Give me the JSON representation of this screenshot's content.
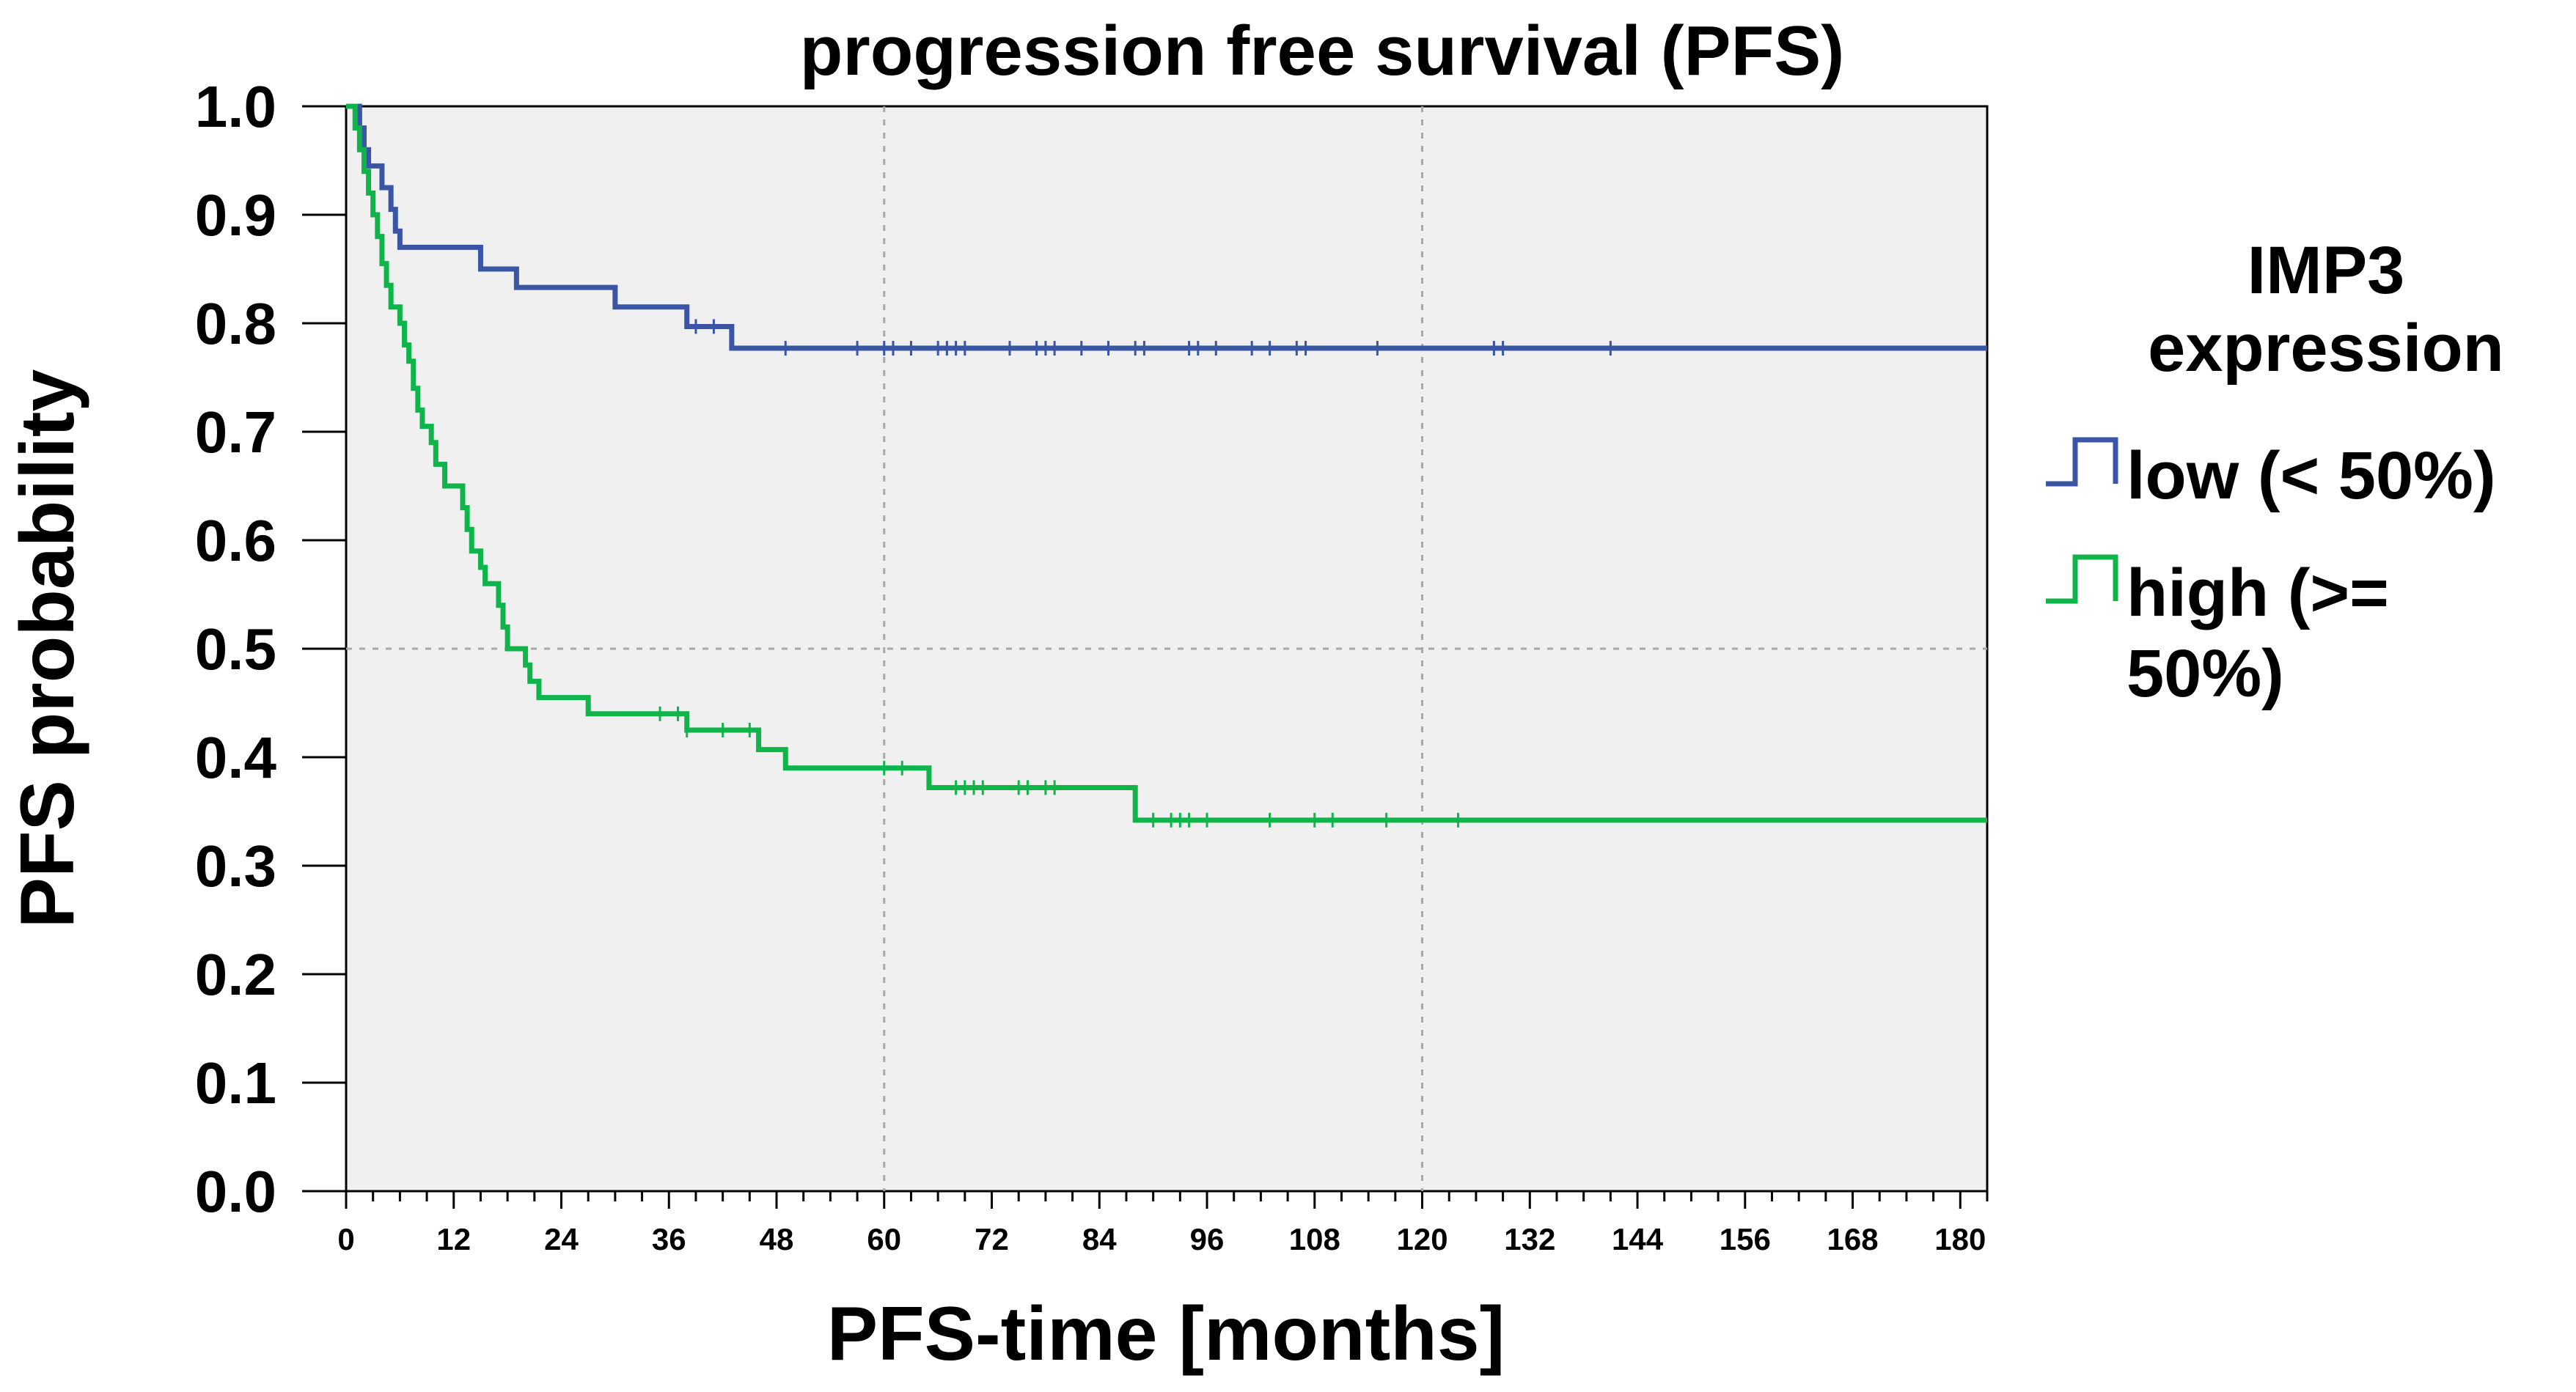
{
  "chart_data": {
    "type": "line",
    "title": "progression free survival (PFS)",
    "xlabel": "PFS-time [months]",
    "ylabel": "PFS probability",
    "xlim": [
      0,
      183
    ],
    "ylim": [
      0,
      1.0
    ],
    "x_ticks": [
      0,
      12,
      24,
      36,
      48,
      60,
      72,
      84,
      96,
      108,
      120,
      132,
      144,
      156,
      168,
      180
    ],
    "y_ticks": [
      "0.0",
      "0.1",
      "0.2",
      "0.3",
      "0.4",
      "0.5",
      "0.6",
      "0.7",
      "0.8",
      "0.9",
      "1.0"
    ],
    "grid": {
      "x_lines": [
        60,
        120
      ],
      "y_lines": [
        0.5
      ]
    },
    "background": "#f0f0f0",
    "legend": {
      "title": [
        "IMP3",
        "expression"
      ],
      "placement": "right"
    },
    "series": [
      {
        "name": "low (< 50%)",
        "legend_lines": [
          "low (< 50%)"
        ],
        "color": "#3a55a4",
        "steps": [
          [
            0,
            1.0
          ],
          [
            1.5,
            0.98
          ],
          [
            2,
            0.96
          ],
          [
            2.5,
            0.945
          ],
          [
            4,
            0.925
          ],
          [
            5,
            0.905
          ],
          [
            5.5,
            0.885
          ],
          [
            6,
            0.87
          ],
          [
            15,
            0.85
          ],
          [
            19,
            0.833
          ],
          [
            30,
            0.815
          ],
          [
            38,
            0.797
          ],
          [
            43,
            0.777
          ],
          [
            183,
            0.777
          ]
        ],
        "censored": [
          39,
          41,
          49,
          57,
          60,
          61,
          63,
          66,
          67,
          68,
          69,
          74,
          77,
          78,
          79,
          82,
          85,
          88,
          89,
          94,
          95,
          97,
          101,
          103,
          106,
          107,
          115,
          128,
          129,
          141
        ]
      },
      {
        "name": "high (>= 50%)",
        "legend_lines": [
          "high (>=",
          "50%)"
        ],
        "color": "#0fb54a",
        "steps": [
          [
            0,
            1.0
          ],
          [
            1,
            0.98
          ],
          [
            1.5,
            0.96
          ],
          [
            2,
            0.94
          ],
          [
            2.5,
            0.92
          ],
          [
            3,
            0.9
          ],
          [
            3.5,
            0.88
          ],
          [
            4,
            0.855
          ],
          [
            4.5,
            0.835
          ],
          [
            5,
            0.815
          ],
          [
            6,
            0.8
          ],
          [
            6.5,
            0.78
          ],
          [
            7,
            0.765
          ],
          [
            7.5,
            0.74
          ],
          [
            8,
            0.72
          ],
          [
            8.5,
            0.705
          ],
          [
            9.5,
            0.69
          ],
          [
            10,
            0.67
          ],
          [
            11,
            0.65
          ],
          [
            13,
            0.63
          ],
          [
            13.5,
            0.61
          ],
          [
            14,
            0.59
          ],
          [
            15,
            0.575
          ],
          [
            15.5,
            0.56
          ],
          [
            17,
            0.54
          ],
          [
            17.5,
            0.52
          ],
          [
            18,
            0.5
          ],
          [
            20,
            0.485
          ],
          [
            20.5,
            0.47
          ],
          [
            21.5,
            0.455
          ],
          [
            27,
            0.44
          ],
          [
            38,
            0.425
          ],
          [
            46,
            0.407
          ],
          [
            49,
            0.39
          ],
          [
            65,
            0.372
          ],
          [
            88,
            0.342
          ],
          [
            183,
            0.342
          ]
        ],
        "censored": [
          35,
          37,
          38,
          42,
          45,
          60,
          62,
          68,
          69,
          70,
          71,
          75,
          76,
          78,
          79,
          90,
          92,
          93,
          94,
          96,
          103,
          108,
          110,
          116,
          124
        ]
      }
    ]
  }
}
